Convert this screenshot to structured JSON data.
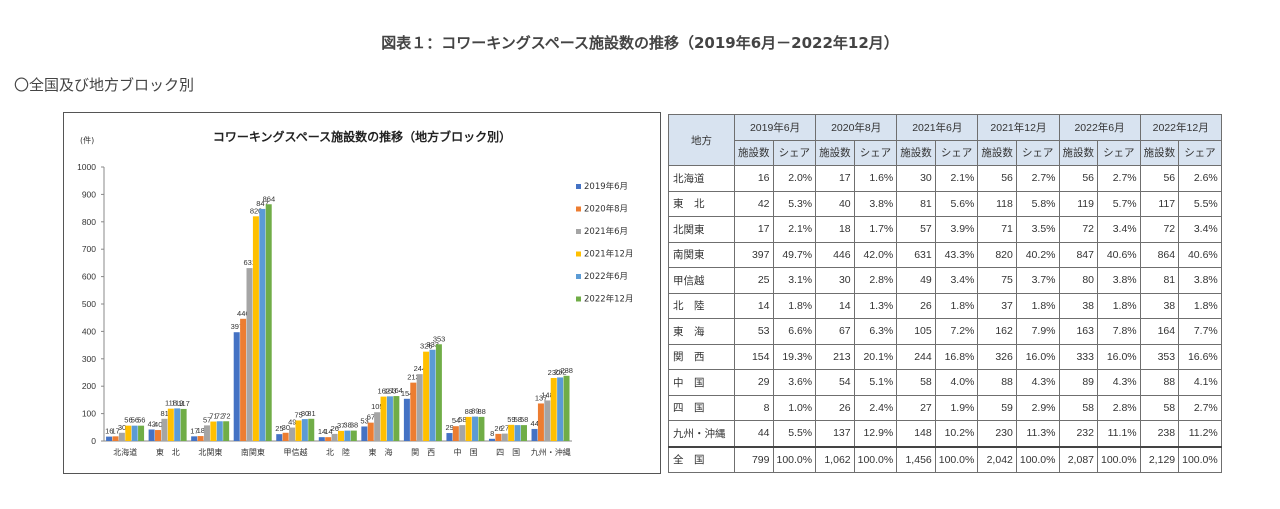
{
  "page": {
    "title": "図表１：コワーキングスペース施設数の推移（2019年6月－2022年12月）",
    "subtitle": "〇全国及び地方ブロック別"
  },
  "chart_data": {
    "type": "bar",
    "title": "コワーキングスペース施設数の推移（地方ブロック別）",
    "ylabel": "(件)",
    "xlabel": "",
    "ylim": [
      0,
      1000
    ],
    "yticks": [
      0,
      100,
      200,
      300,
      400,
      500,
      600,
      700,
      800,
      900,
      1000
    ],
    "legend_position": "right",
    "grid": false,
    "categories": [
      "北海道",
      "東　北",
      "北関東",
      "南関東",
      "甲信越",
      "北　陸",
      "東　海",
      "関　西",
      "中　国",
      "四　国",
      "九州・沖縄"
    ],
    "series": [
      {
        "name": "2019年6月",
        "color": "#4472c4",
        "values": [
          16,
          42,
          17,
          397,
          25,
          14,
          53,
          154,
          29,
          8,
          44
        ]
      },
      {
        "name": "2020年8月",
        "color": "#ed7d31",
        "values": [
          17,
          40,
          18,
          446,
          30,
          14,
          67,
          213,
          54,
          26,
          137
        ]
      },
      {
        "name": "2021年6月",
        "color": "#a5a5a5",
        "values": [
          30,
          81,
          57,
          631,
          49,
          26,
          105,
          244,
          58,
          27,
          148
        ]
      },
      {
        "name": "2021年12月",
        "color": "#ffc000",
        "values": [
          56,
          118,
          71,
          820,
          75,
          37,
          162,
          326,
          88,
          59,
          230
        ]
      },
      {
        "name": "2022年6月",
        "color": "#5b9bd5",
        "values": [
          56,
          119,
          72,
          847,
          80,
          38,
          163,
          333,
          89,
          58,
          232
        ]
      },
      {
        "name": "2022年12月",
        "color": "#70ad47",
        "values": [
          56,
          117,
          72,
          864,
          81,
          38,
          164,
          353,
          88,
          58,
          238
        ]
      }
    ]
  },
  "table": {
    "corner_label": "地方",
    "periods": [
      "2019年6月",
      "2020年8月",
      "2021年6月",
      "2021年12月",
      "2022年6月",
      "2022年12月"
    ],
    "sub_headers": [
      "施設数",
      "シェア"
    ],
    "rows": [
      {
        "region": "北海道",
        "cells": [
          "16",
          "2.0%",
          "17",
          "1.6%",
          "30",
          "2.1%",
          "56",
          "2.7%",
          "56",
          "2.7%",
          "56",
          "2.6%"
        ]
      },
      {
        "region": "東　北",
        "cells": [
          "42",
          "5.3%",
          "40",
          "3.8%",
          "81",
          "5.6%",
          "118",
          "5.8%",
          "119",
          "5.7%",
          "117",
          "5.5%"
        ]
      },
      {
        "region": "北関東",
        "cells": [
          "17",
          "2.1%",
          "18",
          "1.7%",
          "57",
          "3.9%",
          "71",
          "3.5%",
          "72",
          "3.4%",
          "72",
          "3.4%"
        ]
      },
      {
        "region": "南関東",
        "cells": [
          "397",
          "49.7%",
          "446",
          "42.0%",
          "631",
          "43.3%",
          "820",
          "40.2%",
          "847",
          "40.6%",
          "864",
          "40.6%"
        ]
      },
      {
        "region": "甲信越",
        "cells": [
          "25",
          "3.1%",
          "30",
          "2.8%",
          "49",
          "3.4%",
          "75",
          "3.7%",
          "80",
          "3.8%",
          "81",
          "3.8%"
        ]
      },
      {
        "region": "北　陸",
        "cells": [
          "14",
          "1.8%",
          "14",
          "1.3%",
          "26",
          "1.8%",
          "37",
          "1.8%",
          "38",
          "1.8%",
          "38",
          "1.8%"
        ]
      },
      {
        "region": "東　海",
        "cells": [
          "53",
          "6.6%",
          "67",
          "6.3%",
          "105",
          "7.2%",
          "162",
          "7.9%",
          "163",
          "7.8%",
          "164",
          "7.7%"
        ]
      },
      {
        "region": "関　西",
        "cells": [
          "154",
          "19.3%",
          "213",
          "20.1%",
          "244",
          "16.8%",
          "326",
          "16.0%",
          "333",
          "16.0%",
          "353",
          "16.6%"
        ]
      },
      {
        "region": "中　国",
        "cells": [
          "29",
          "3.6%",
          "54",
          "5.1%",
          "58",
          "4.0%",
          "88",
          "4.3%",
          "89",
          "4.3%",
          "88",
          "4.1%"
        ]
      },
      {
        "region": "四　国",
        "cells": [
          "8",
          "1.0%",
          "26",
          "2.4%",
          "27",
          "1.9%",
          "59",
          "2.9%",
          "58",
          "2.8%",
          "58",
          "2.7%"
        ]
      },
      {
        "region": "九州・沖縄",
        "cells": [
          "44",
          "5.5%",
          "137",
          "12.9%",
          "148",
          "10.2%",
          "230",
          "11.3%",
          "232",
          "11.1%",
          "238",
          "11.2%"
        ]
      }
    ],
    "total": {
      "region": "全　国",
      "cells": [
        "799",
        "100.0%",
        "1,062",
        "100.0%",
        "1,456",
        "100.0%",
        "2,042",
        "100.0%",
        "2,087",
        "100.0%",
        "2,129",
        "100.0%"
      ]
    }
  }
}
